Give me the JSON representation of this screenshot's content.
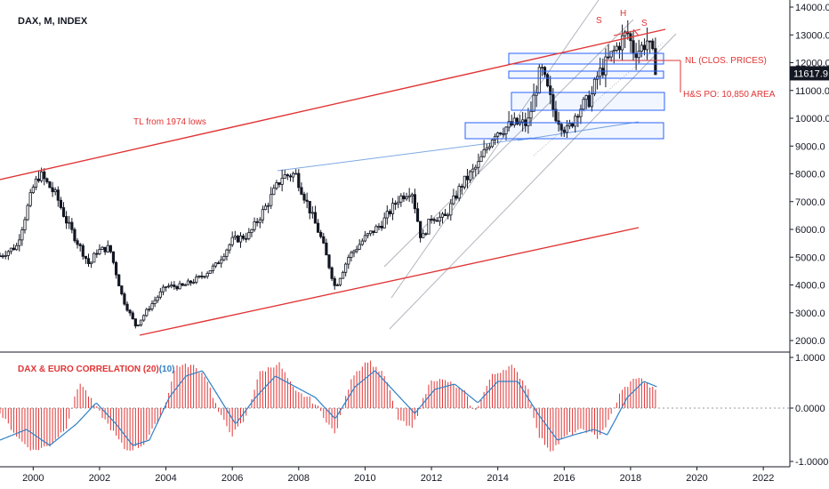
{
  "colors": {
    "candle_up": "#ffffff",
    "candle_down": "#131722",
    "trendline": "#e03434",
    "channel": "#b2b5be",
    "support_zone": "#2962ff",
    "osc_bar": "#e03434",
    "osc_ma": "#2f80c6",
    "price_tag": "#131722",
    "grid": "#131722"
  },
  "chart_data": [
    {
      "type": "candlestick",
      "title": "DAX, M, INDEX",
      "interval": "monthly",
      "current_price_label": "11617.9",
      "y_ticks": [
        "14000.0",
        "13000.0",
        "12000.0",
        "11000.0",
        "10000.0",
        "9000.0",
        "8000.0",
        "7000.0",
        "6000.0",
        "5000.0",
        "4000.0",
        "3000.0",
        "2000.0"
      ],
      "ylim": [
        1500,
        14300
      ],
      "x_ticks": [
        "2000",
        "2002",
        "2004",
        "2006",
        "2008",
        "2010",
        "2012",
        "2014",
        "2016",
        "2018",
        "2020",
        "2022"
      ],
      "xlim": [
        1999.0,
        2022.8
      ],
      "price_path": [
        [
          1999.0,
          5050
        ],
        [
          1999.5,
          5400
        ],
        [
          2000.0,
          7500
        ],
        [
          2000.2,
          8000
        ],
        [
          2000.7,
          7200
        ],
        [
          2001.0,
          6300
        ],
        [
          2001.7,
          4700
        ],
        [
          2001.9,
          5200
        ],
        [
          2002.3,
          5350
        ],
        [
          2002.7,
          3500
        ],
        [
          2003.1,
          2500
        ],
        [
          2003.5,
          3200
        ],
        [
          2004.0,
          3950
        ],
        [
          2004.5,
          3950
        ],
        [
          2005.0,
          4250
        ],
        [
          2005.5,
          4700
        ],
        [
          2006.0,
          5600
        ],
        [
          2006.5,
          5800
        ],
        [
          2007.0,
          6800
        ],
        [
          2007.5,
          7900
        ],
        [
          2007.9,
          8000
        ],
        [
          2008.3,
          6800
        ],
        [
          2008.7,
          5600
        ],
        [
          2009.1,
          3900
        ],
        [
          2009.5,
          5000
        ],
        [
          2010.0,
          5700
        ],
        [
          2010.5,
          6200
        ],
        [
          2011.0,
          7100
        ],
        [
          2011.4,
          7450
        ],
        [
          2011.7,
          5600
        ],
        [
          2012.0,
          6450
        ],
        [
          2012.4,
          6400
        ],
        [
          2012.9,
          7600
        ],
        [
          2013.4,
          8300
        ],
        [
          2013.9,
          9500
        ],
        [
          2014.5,
          9800
        ],
        [
          2014.9,
          9800
        ],
        [
          2015.3,
          11800
        ],
        [
          2015.7,
          10200
        ],
        [
          2016.1,
          9500
        ],
        [
          2016.4,
          10300
        ],
        [
          2016.8,
          10700
        ],
        [
          2017.0,
          11500
        ],
        [
          2017.5,
          12400
        ],
        [
          2017.9,
          13100
        ],
        [
          2018.1,
          12400
        ],
        [
          2018.3,
          12500
        ],
        [
          2018.5,
          12800
        ],
        [
          2018.7,
          12100
        ],
        [
          2018.8,
          11618
        ]
      ]
    },
    {
      "type": "histogram",
      "title": "DAX & EURO CORRELATION (20)",
      "title_ma_part": "(10)",
      "series": [
        {
          "name": "CORRELATION (20)",
          "type": "bar"
        },
        {
          "name": "(10)",
          "type": "line"
        }
      ],
      "y_ticks": [
        "1.0000",
        "0.0000",
        "-1.0000"
      ],
      "ylim": [
        -1.05,
        1.05
      ],
      "corr_path": [
        [
          1999.0,
          -0.1
        ],
        [
          1999.6,
          -0.6
        ],
        [
          2000.0,
          -0.8
        ],
        [
          2000.5,
          -0.7
        ],
        [
          2001.0,
          -0.35
        ],
        [
          2001.4,
          0.5
        ],
        [
          2001.8,
          0.1
        ],
        [
          2002.3,
          -0.35
        ],
        [
          2002.8,
          -0.8
        ],
        [
          2003.3,
          -0.7
        ],
        [
          2003.9,
          -0.1
        ],
        [
          2004.3,
          0.8
        ],
        [
          2004.8,
          0.8
        ],
        [
          2005.2,
          0.6
        ],
        [
          2005.6,
          -0.1
        ],
        [
          2006.0,
          -0.5
        ],
        [
          2006.4,
          -0.2
        ],
        [
          2006.8,
          0.65
        ],
        [
          2007.4,
          0.85
        ],
        [
          2007.9,
          0.3
        ],
        [
          2008.3,
          0.2
        ],
        [
          2008.6,
          0.0
        ],
        [
          2009.1,
          -0.5
        ],
        [
          2009.6,
          0.6
        ],
        [
          2010.1,
          0.9
        ],
        [
          2010.6,
          0.6
        ],
        [
          2011.0,
          -0.2
        ],
        [
          2011.4,
          -0.4
        ],
        [
          2012.0,
          0.55
        ],
        [
          2012.5,
          0.5
        ],
        [
          2013.0,
          0.3
        ],
        [
          2013.3,
          -0.1
        ],
        [
          2013.8,
          0.6
        ],
        [
          2014.4,
          0.8
        ],
        [
          2014.9,
          0.4
        ],
        [
          2015.2,
          -0.5
        ],
        [
          2015.6,
          -0.8
        ],
        [
          2016.1,
          -0.5
        ],
        [
          2016.6,
          -0.4
        ],
        [
          2017.0,
          -0.55
        ],
        [
          2017.3,
          -0.3
        ],
        [
          2017.7,
          0.3
        ],
        [
          2018.2,
          0.6
        ],
        [
          2018.6,
          0.4
        ],
        [
          2018.8,
          0.3
        ]
      ],
      "ma_path": [
        [
          1999.0,
          -0.6
        ],
        [
          1999.8,
          -0.4
        ],
        [
          2000.5,
          -0.7
        ],
        [
          2001.3,
          -0.3
        ],
        [
          2001.9,
          0.1
        ],
        [
          2002.5,
          -0.3
        ],
        [
          2003.0,
          -0.7
        ],
        [
          2003.5,
          -0.6
        ],
        [
          2004.1,
          0.2
        ],
        [
          2004.6,
          0.6
        ],
        [
          2005.1,
          0.7
        ],
        [
          2005.6,
          0.2
        ],
        [
          2006.1,
          -0.3
        ],
        [
          2006.7,
          0.2
        ],
        [
          2007.3,
          0.6
        ],
        [
          2007.9,
          0.4
        ],
        [
          2008.5,
          0.2
        ],
        [
          2009.1,
          -0.2
        ],
        [
          2009.7,
          0.4
        ],
        [
          2010.3,
          0.7
        ],
        [
          2010.9,
          0.3
        ],
        [
          2011.5,
          -0.1
        ],
        [
          2012.1,
          0.35
        ],
        [
          2012.7,
          0.45
        ],
        [
          2013.4,
          0.1
        ],
        [
          2014.0,
          0.5
        ],
        [
          2014.6,
          0.5
        ],
        [
          2015.2,
          -0.1
        ],
        [
          2015.8,
          -0.6
        ],
        [
          2016.3,
          -0.5
        ],
        [
          2016.9,
          -0.4
        ],
        [
          2017.3,
          -0.5
        ],
        [
          2017.9,
          0.2
        ],
        [
          2018.4,
          0.5
        ],
        [
          2018.8,
          0.4
        ]
      ]
    }
  ],
  "annotations": {
    "tl_label": "TL  from 1974 lows",
    "nl_label": "NL (CLOS. PRICES)",
    "hs_po": "H&S PO: 10,850 AREA",
    "shoulder_left": "S",
    "head": "H",
    "shoulder_right": "S"
  }
}
